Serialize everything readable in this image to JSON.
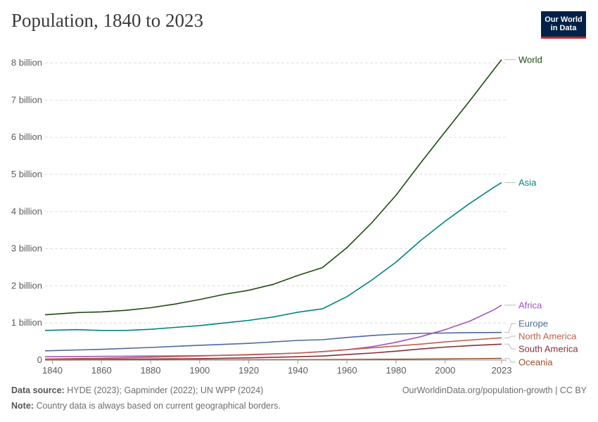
{
  "header": {
    "title": "Population, 1840 to 2023",
    "logo_line1": "Our World",
    "logo_line2": "in Data"
  },
  "footer": {
    "source_label": "Data source:",
    "source_text": "HYDE (2023); Gapminder (2022); UN WPP (2024)",
    "note_label": "Note:",
    "note_text": "Country data is always based on current geographical borders.",
    "url": "OurWorldinData.org/population-growth | CC BY"
  },
  "colors": {
    "World": "#1d4a12",
    "Asia": "#00847e",
    "Africa": "#a652ba",
    "Europe": "#4c6a9c",
    "North America": "#c15f4b",
    "South America": "#883039",
    "Oceania": "#9a5129",
    "grid": "#dddddd",
    "axis": "#999999"
  },
  "chart_data": {
    "type": "line",
    "title": "Population, 1840 to 2023",
    "xlim": [
      1837,
      2025
    ],
    "ylim": [
      0,
      8200000000
    ],
    "yticks": [
      0,
      1000000000,
      2000000000,
      3000000000,
      4000000000,
      5000000000,
      6000000000,
      7000000000,
      8000000000
    ],
    "ytick_labels": [
      "0",
      "1 billion",
      "2 billion",
      "3 billion",
      "4 billion",
      "5 billion",
      "6 billion",
      "7 billion",
      "8 billion"
    ],
    "xticks": [
      1840,
      1860,
      1880,
      1900,
      1920,
      1940,
      1960,
      1980,
      2000,
      2023
    ],
    "xtick_labels": [
      "1840",
      "1860",
      "1880",
      "1900",
      "1920",
      "1940",
      "1960",
      "1980",
      "2000",
      "2023"
    ],
    "grid": "horizontal dashed",
    "legend": "right, labels at line ends",
    "series": [
      {
        "name": "World",
        "points": [
          [
            1837,
            1220000000
          ],
          [
            1850,
            1280000000
          ],
          [
            1860,
            1300000000
          ],
          [
            1870,
            1340000000
          ],
          [
            1880,
            1410000000
          ],
          [
            1890,
            1510000000
          ],
          [
            1900,
            1630000000
          ],
          [
            1910,
            1770000000
          ],
          [
            1920,
            1880000000
          ],
          [
            1930,
            2040000000
          ],
          [
            1940,
            2280000000
          ],
          [
            1950,
            2490000000
          ],
          [
            1960,
            3030000000
          ],
          [
            1970,
            3690000000
          ],
          [
            1980,
            4440000000
          ],
          [
            1990,
            5310000000
          ],
          [
            2000,
            6150000000
          ],
          [
            2010,
            6980000000
          ],
          [
            2020,
            7840000000
          ],
          [
            2023,
            8090000000
          ]
        ]
      },
      {
        "name": "Asia",
        "points": [
          [
            1837,
            800000000
          ],
          [
            1850,
            820000000
          ],
          [
            1860,
            800000000
          ],
          [
            1870,
            800000000
          ],
          [
            1880,
            830000000
          ],
          [
            1890,
            880000000
          ],
          [
            1900,
            930000000
          ],
          [
            1910,
            1000000000
          ],
          [
            1920,
            1070000000
          ],
          [
            1930,
            1160000000
          ],
          [
            1940,
            1290000000
          ],
          [
            1950,
            1380000000
          ],
          [
            1960,
            1710000000
          ],
          [
            1970,
            2150000000
          ],
          [
            1980,
            2640000000
          ],
          [
            1990,
            3220000000
          ],
          [
            2000,
            3740000000
          ],
          [
            2010,
            4220000000
          ],
          [
            2020,
            4660000000
          ],
          [
            2023,
            4780000000
          ]
        ]
      },
      {
        "name": "Africa",
        "points": [
          [
            1837,
            90000000
          ],
          [
            1860,
            100000000
          ],
          [
            1880,
            110000000
          ],
          [
            1900,
            120000000
          ],
          [
            1920,
            140000000
          ],
          [
            1940,
            190000000
          ],
          [
            1950,
            230000000
          ],
          [
            1960,
            280000000
          ],
          [
            1970,
            360000000
          ],
          [
            1980,
            480000000
          ],
          [
            1990,
            630000000
          ],
          [
            2000,
            820000000
          ],
          [
            2010,
            1050000000
          ],
          [
            2020,
            1360000000
          ],
          [
            2023,
            1480000000
          ]
        ]
      },
      {
        "name": "Europe",
        "points": [
          [
            1837,
            250000000
          ],
          [
            1860,
            290000000
          ],
          [
            1880,
            340000000
          ],
          [
            1900,
            400000000
          ],
          [
            1920,
            450000000
          ],
          [
            1940,
            530000000
          ],
          [
            1950,
            550000000
          ],
          [
            1960,
            610000000
          ],
          [
            1970,
            660000000
          ],
          [
            1980,
            700000000
          ],
          [
            1990,
            720000000
          ],
          [
            2000,
            730000000
          ],
          [
            2010,
            740000000
          ],
          [
            2023,
            745000000
          ]
        ]
      },
      {
        "name": "North America",
        "points": [
          [
            1837,
            30000000
          ],
          [
            1860,
            50000000
          ],
          [
            1880,
            80000000
          ],
          [
            1900,
            110000000
          ],
          [
            1920,
            150000000
          ],
          [
            1940,
            190000000
          ],
          [
            1950,
            230000000
          ],
          [
            1960,
            280000000
          ],
          [
            1970,
            330000000
          ],
          [
            1980,
            380000000
          ],
          [
            1990,
            430000000
          ],
          [
            2000,
            490000000
          ],
          [
            2010,
            540000000
          ],
          [
            2023,
            600000000
          ]
        ]
      },
      {
        "name": "South America",
        "points": [
          [
            1837,
            10000000
          ],
          [
            1860,
            20000000
          ],
          [
            1880,
            30000000
          ],
          [
            1900,
            40000000
          ],
          [
            1920,
            60000000
          ],
          [
            1940,
            90000000
          ],
          [
            1950,
            110000000
          ],
          [
            1960,
            150000000
          ],
          [
            1970,
            190000000
          ],
          [
            1980,
            240000000
          ],
          [
            1990,
            300000000
          ],
          [
            2000,
            350000000
          ],
          [
            2010,
            390000000
          ],
          [
            2023,
            430000000
          ]
        ]
      },
      {
        "name": "Oceania",
        "points": [
          [
            1837,
            2000000
          ],
          [
            1880,
            4000000
          ],
          [
            1900,
            6000000
          ],
          [
            1920,
            9000000
          ],
          [
            1950,
            13000000
          ],
          [
            1970,
            20000000
          ],
          [
            1990,
            27000000
          ],
          [
            2010,
            37000000
          ],
          [
            2023,
            45000000
          ]
        ]
      }
    ]
  }
}
